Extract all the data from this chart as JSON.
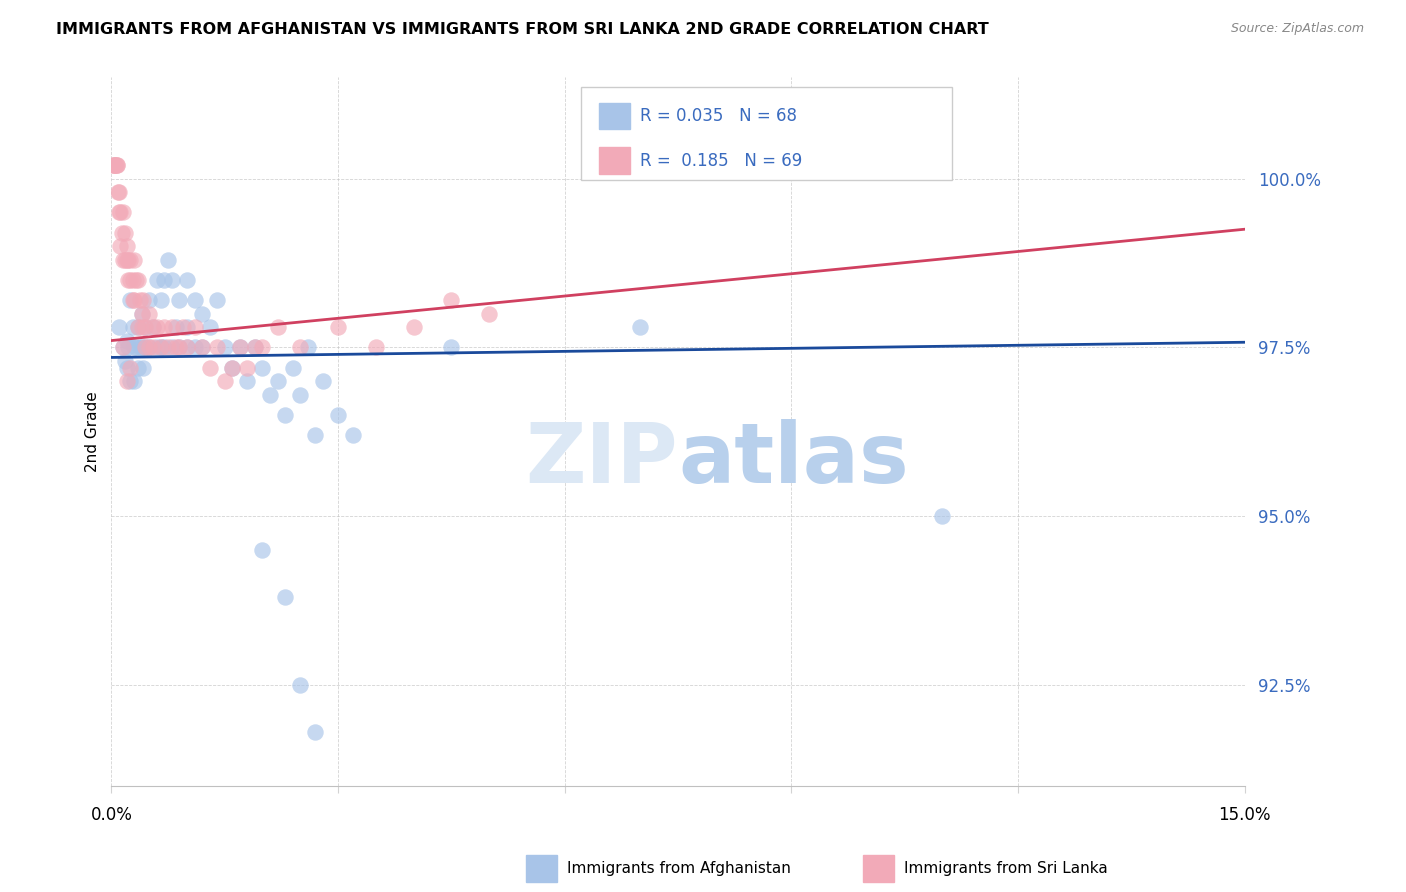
{
  "title": "IMMIGRANTS FROM AFGHANISTAN VS IMMIGRANTS FROM SRI LANKA 2ND GRADE CORRELATION CHART",
  "source": "Source: ZipAtlas.com",
  "ylabel": "2nd Grade",
  "y_ticks": [
    92.5,
    95.0,
    97.5,
    100.0
  ],
  "y_tick_labels": [
    "92.5%",
    "95.0%",
    "97.5%",
    "100.0%"
  ],
  "xmin": 0.0,
  "xmax": 15.0,
  "ymin": 91.0,
  "ymax": 101.5,
  "R_blue": 0.035,
  "N_blue": 68,
  "R_pink": 0.185,
  "N_pink": 69,
  "blue_color": "#a8c4e8",
  "pink_color": "#f2aab8",
  "blue_line_color": "#1a4a9b",
  "pink_line_color": "#d04060",
  "legend_blue_label": "Immigrants from Afghanistan",
  "legend_pink_label": "Immigrants from Sri Lanka",
  "watermark_color": "#dce8f5",
  "scatter_blue": [
    [
      0.1,
      97.8
    ],
    [
      0.15,
      97.5
    ],
    [
      0.18,
      97.3
    ],
    [
      0.2,
      97.6
    ],
    [
      0.2,
      97.2
    ],
    [
      0.22,
      97.5
    ],
    [
      0.25,
      98.2
    ],
    [
      0.25,
      97.0
    ],
    [
      0.28,
      97.8
    ],
    [
      0.3,
      97.5
    ],
    [
      0.3,
      97.0
    ],
    [
      0.32,
      97.5
    ],
    [
      0.35,
      97.8
    ],
    [
      0.35,
      97.2
    ],
    [
      0.38,
      97.5
    ],
    [
      0.4,
      98.0
    ],
    [
      0.4,
      97.5
    ],
    [
      0.42,
      97.2
    ],
    [
      0.45,
      97.8
    ],
    [
      0.45,
      97.5
    ],
    [
      0.5,
      98.2
    ],
    [
      0.5,
      97.5
    ],
    [
      0.55,
      97.8
    ],
    [
      0.6,
      98.5
    ],
    [
      0.6,
      97.5
    ],
    [
      0.65,
      98.2
    ],
    [
      0.65,
      97.5
    ],
    [
      0.7,
      98.5
    ],
    [
      0.7,
      97.5
    ],
    [
      0.75,
      98.8
    ],
    [
      0.8,
      98.5
    ],
    [
      0.8,
      97.5
    ],
    [
      0.85,
      97.8
    ],
    [
      0.9,
      98.2
    ],
    [
      0.9,
      97.5
    ],
    [
      1.0,
      98.5
    ],
    [
      1.0,
      97.8
    ],
    [
      1.0,
      97.5
    ],
    [
      1.1,
      98.2
    ],
    [
      1.1,
      97.5
    ],
    [
      1.2,
      98.0
    ],
    [
      1.2,
      97.5
    ],
    [
      1.3,
      97.8
    ],
    [
      1.4,
      98.2
    ],
    [
      1.5,
      97.5
    ],
    [
      1.6,
      97.2
    ],
    [
      1.7,
      97.5
    ],
    [
      1.8,
      97.0
    ],
    [
      1.9,
      97.5
    ],
    [
      2.0,
      97.2
    ],
    [
      2.1,
      96.8
    ],
    [
      2.2,
      97.0
    ],
    [
      2.3,
      96.5
    ],
    [
      2.4,
      97.2
    ],
    [
      2.5,
      96.8
    ],
    [
      2.6,
      97.5
    ],
    [
      2.7,
      96.2
    ],
    [
      2.8,
      97.0
    ],
    [
      3.0,
      96.5
    ],
    [
      3.2,
      96.2
    ],
    [
      4.5,
      97.5
    ],
    [
      7.0,
      97.8
    ],
    [
      10.0,
      100.2
    ],
    [
      11.0,
      95.0
    ],
    [
      2.0,
      94.5
    ],
    [
      2.3,
      93.8
    ],
    [
      2.5,
      92.5
    ],
    [
      2.7,
      91.8
    ]
  ],
  "scatter_pink": [
    [
      0.02,
      100.2
    ],
    [
      0.03,
      100.2
    ],
    [
      0.04,
      100.2
    ],
    [
      0.05,
      100.2
    ],
    [
      0.06,
      100.2
    ],
    [
      0.07,
      100.2
    ],
    [
      0.08,
      100.2
    ],
    [
      0.09,
      99.8
    ],
    [
      0.1,
      99.5
    ],
    [
      0.1,
      99.8
    ],
    [
      0.12,
      99.5
    ],
    [
      0.12,
      99.0
    ],
    [
      0.14,
      99.2
    ],
    [
      0.15,
      99.5
    ],
    [
      0.15,
      98.8
    ],
    [
      0.18,
      99.2
    ],
    [
      0.18,
      98.8
    ],
    [
      0.2,
      99.0
    ],
    [
      0.2,
      98.8
    ],
    [
      0.22,
      98.8
    ],
    [
      0.22,
      98.5
    ],
    [
      0.25,
      98.8
    ],
    [
      0.25,
      98.5
    ],
    [
      0.28,
      98.5
    ],
    [
      0.28,
      98.2
    ],
    [
      0.3,
      98.8
    ],
    [
      0.3,
      98.2
    ],
    [
      0.32,
      98.5
    ],
    [
      0.35,
      98.5
    ],
    [
      0.35,
      97.8
    ],
    [
      0.38,
      98.2
    ],
    [
      0.4,
      98.0
    ],
    [
      0.4,
      97.8
    ],
    [
      0.42,
      98.2
    ],
    [
      0.45,
      97.8
    ],
    [
      0.45,
      97.5
    ],
    [
      0.5,
      98.0
    ],
    [
      0.5,
      97.5
    ],
    [
      0.55,
      97.8
    ],
    [
      0.55,
      97.5
    ],
    [
      0.6,
      97.8
    ],
    [
      0.65,
      97.5
    ],
    [
      0.7,
      97.8
    ],
    [
      0.75,
      97.5
    ],
    [
      0.8,
      97.8
    ],
    [
      0.85,
      97.5
    ],
    [
      0.9,
      97.5
    ],
    [
      0.95,
      97.8
    ],
    [
      1.0,
      97.5
    ],
    [
      1.1,
      97.8
    ],
    [
      1.2,
      97.5
    ],
    [
      1.3,
      97.2
    ],
    [
      1.4,
      97.5
    ],
    [
      1.5,
      97.0
    ],
    [
      1.6,
      97.2
    ],
    [
      1.7,
      97.5
    ],
    [
      1.8,
      97.2
    ],
    [
      1.9,
      97.5
    ],
    [
      2.0,
      97.5
    ],
    [
      2.2,
      97.8
    ],
    [
      2.5,
      97.5
    ],
    [
      3.0,
      97.8
    ],
    [
      3.5,
      97.5
    ],
    [
      4.0,
      97.8
    ],
    [
      4.5,
      98.2
    ],
    [
      5.0,
      98.0
    ],
    [
      0.15,
      97.5
    ],
    [
      0.2,
      97.0
    ],
    [
      0.25,
      97.2
    ]
  ]
}
